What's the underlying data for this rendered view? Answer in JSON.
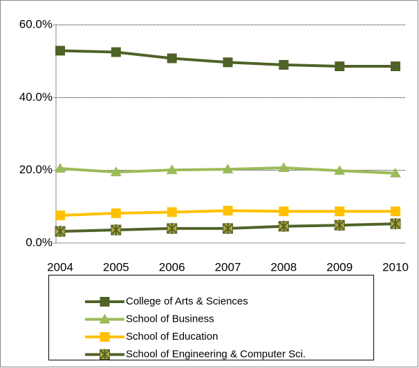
{
  "chart_data": {
    "type": "line",
    "categories": [
      "2004",
      "2005",
      "2006",
      "2007",
      "2008",
      "2009",
      "2010"
    ],
    "series": [
      {
        "name": "College of Arts & Sciences",
        "color": "#4f6228",
        "marker": "square",
        "values": [
          52.9,
          52.5,
          50.8,
          49.7,
          49.0,
          48.6,
          48.6
        ]
      },
      {
        "name": "School of Business",
        "color": "#9bbb59",
        "marker": "triangle",
        "values": [
          20.5,
          19.5,
          20.1,
          20.3,
          20.7,
          19.9,
          19.2
        ]
      },
      {
        "name": "School of Education",
        "color": "#ffc000",
        "marker": "square",
        "values": [
          7.6,
          8.2,
          8.5,
          8.9,
          8.7,
          8.7,
          8.7
        ]
      },
      {
        "name": "School of Engineering & Computer Sci.",
        "color": "#4f6228",
        "marker": "star",
        "values": [
          3.2,
          3.6,
          4.0,
          4.0,
          4.6,
          4.9,
          5.3
        ]
      }
    ],
    "ylim": [
      0,
      60
    ],
    "yticks": [
      {
        "value": 0,
        "label": "0.0%"
      },
      {
        "value": 20,
        "label": "20.0%"
      },
      {
        "value": 40,
        "label": "40.0%"
      },
      {
        "value": 60,
        "label": "60.0%"
      }
    ],
    "grid": true,
    "legend": "bottom"
  }
}
